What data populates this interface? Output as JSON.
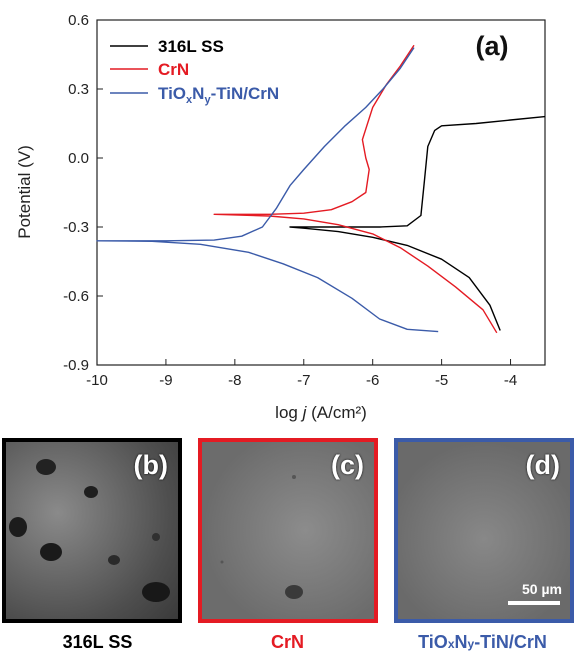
{
  "chart_data": {
    "type": "line",
    "panel_tag": "(a)",
    "xlabel": "log j (A/cm²)",
    "ylabel": "Potential (V)",
    "xlim": [
      -10,
      -3.5
    ],
    "ylim": [
      -0.9,
      0.6
    ],
    "x_ticks": [
      -10,
      -9,
      -8,
      -7,
      -6,
      -5,
      -4
    ],
    "x_tick_labels": [
      "-10",
      "-9",
      "-8",
      "-7",
      "-6",
      "-5",
      "-4"
    ],
    "y_ticks": [
      -0.9,
      -0.6,
      -0.3,
      0.0,
      0.3,
      0.6
    ],
    "y_tick_labels": [
      "-0.9",
      "-0.6",
      "-0.3",
      "0.0",
      "0.3",
      "0.6"
    ],
    "legend_position": "top-left",
    "series": [
      {
        "name": "316L SS",
        "color": "#000000",
        "cathodic": [
          [
            -4.15,
            -0.75
          ],
          [
            -4.3,
            -0.64
          ],
          [
            -4.6,
            -0.52
          ],
          [
            -5.0,
            -0.44
          ],
          [
            -5.5,
            -0.38
          ],
          [
            -6.0,
            -0.345
          ],
          [
            -6.5,
            -0.32
          ],
          [
            -7.0,
            -0.305
          ],
          [
            -7.2,
            -0.3
          ]
        ],
        "anodic": [
          [
            -7.2,
            -0.3
          ],
          [
            -6.5,
            -0.3
          ],
          [
            -5.9,
            -0.3
          ],
          [
            -5.5,
            -0.295
          ],
          [
            -5.3,
            -0.25
          ],
          [
            -5.25,
            -0.1
          ],
          [
            -5.2,
            0.05
          ],
          [
            -5.1,
            0.12
          ],
          [
            -5.0,
            0.14
          ],
          [
            -4.5,
            0.15
          ],
          [
            -4.0,
            0.165
          ],
          [
            -3.5,
            0.18
          ]
        ]
      },
      {
        "name": "CrN",
        "color": "#e41b23",
        "cathodic": [
          [
            -4.2,
            -0.76
          ],
          [
            -4.4,
            -0.66
          ],
          [
            -4.8,
            -0.56
          ],
          [
            -5.2,
            -0.47
          ],
          [
            -5.6,
            -0.39
          ],
          [
            -6.0,
            -0.33
          ],
          [
            -6.5,
            -0.29
          ],
          [
            -7.0,
            -0.265
          ],
          [
            -7.5,
            -0.252
          ],
          [
            -8.3,
            -0.245
          ]
        ],
        "anodic": [
          [
            -8.3,
            -0.245
          ],
          [
            -7.5,
            -0.245
          ],
          [
            -7.0,
            -0.24
          ],
          [
            -6.6,
            -0.225
          ],
          [
            -6.3,
            -0.19
          ],
          [
            -6.1,
            -0.15
          ],
          [
            -6.05,
            -0.05
          ],
          [
            -6.1,
            0.0
          ],
          [
            -6.15,
            0.08
          ],
          [
            -6.0,
            0.22
          ],
          [
            -5.8,
            0.32
          ],
          [
            -5.6,
            0.4
          ],
          [
            -5.4,
            0.49
          ]
        ]
      },
      {
        "name": "TiOxNy-TiN/CrN",
        "color": "#3b5ba9",
        "cathodic": [
          [
            -5.05,
            -0.755
          ],
          [
            -5.5,
            -0.745
          ],
          [
            -5.9,
            -0.7
          ],
          [
            -6.3,
            -0.61
          ],
          [
            -6.8,
            -0.52
          ],
          [
            -7.3,
            -0.46
          ],
          [
            -7.8,
            -0.41
          ],
          [
            -8.5,
            -0.375
          ],
          [
            -9.2,
            -0.362
          ],
          [
            -10.0,
            -0.36
          ]
        ],
        "anodic": [
          [
            -10.0,
            -0.36
          ],
          [
            -9.0,
            -0.36
          ],
          [
            -8.3,
            -0.357
          ],
          [
            -7.9,
            -0.34
          ],
          [
            -7.6,
            -0.3
          ],
          [
            -7.4,
            -0.22
          ],
          [
            -7.2,
            -0.12
          ],
          [
            -7.0,
            -0.05
          ],
          [
            -6.7,
            0.05
          ],
          [
            -6.4,
            0.14
          ],
          [
            -6.1,
            0.22
          ],
          [
            -5.85,
            0.3
          ],
          [
            -5.6,
            0.39
          ],
          [
            -5.4,
            0.48
          ]
        ]
      }
    ]
  },
  "legend": [
    {
      "base": "316L SS",
      "color": "#000000"
    },
    {
      "base": "CrN",
      "color": "#e41b23"
    },
    {
      "parts": [
        "TiO",
        "x",
        "N",
        "y",
        "-TiN/CrN"
      ],
      "color": "#3b5ba9"
    }
  ],
  "micrographs": [
    {
      "tag": "(b)",
      "caption": "316L SS",
      "border": "#000000",
      "caption_color": "#000000",
      "scale": ""
    },
    {
      "tag": "(c)",
      "caption": "CrN",
      "border": "#e41b23",
      "caption_color": "#e41b23",
      "scale": ""
    },
    {
      "tag": "(d)",
      "caption_parts": [
        "TiO",
        "x",
        "N",
        "y",
        "-TiN/CrN"
      ],
      "border": "#3b5ba9",
      "caption_color": "#3b5ba9",
      "scale": "50 µm"
    }
  ]
}
